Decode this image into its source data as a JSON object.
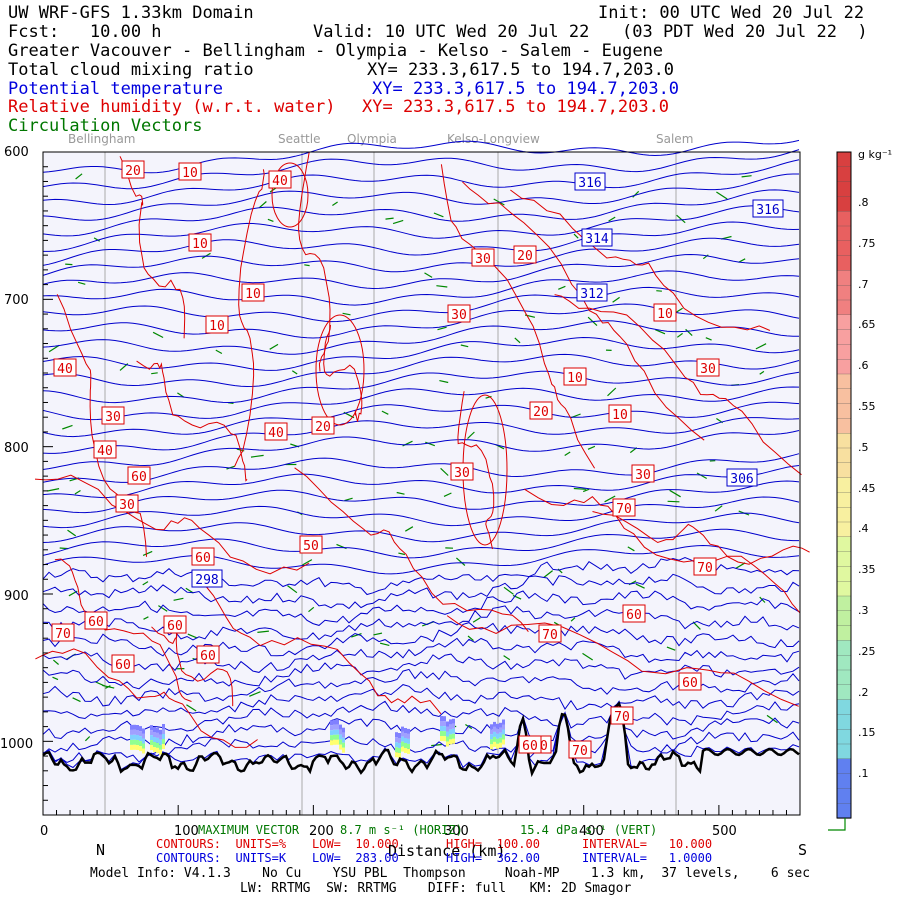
{
  "header": {
    "line1_left": "UW WRF-GFS 1.33km Domain",
    "line1_right": "Init: 00 UTC Wed 20 Jul 22",
    "line2_left": "Fcst:   10.00 h",
    "line2_mid": "Valid: 10 UTC Wed 20 Jul 22",
    "line2_right": "(03 PDT Wed 20 Jul 22  )",
    "line3": "Greater Vacouver - Bellingham - Olympia - Kelso - Salem - Eugene",
    "fields": [
      {
        "name": "Total cloud mixing ratio",
        "xy": "XY= 233.3,617.5 to 194.7,203.0",
        "color": "#000000"
      },
      {
        "name": "Potential temperature",
        "xy": "XY= 233.3,617.5 to 194.7,203.0",
        "color": "#0000dd"
      },
      {
        "name": "Relative humidity (w.r.t. water)",
        "xy": "XY= 233.3,617.5 to 194.7,203.0",
        "color": "#dd0000"
      },
      {
        "name": "Circulation Vectors",
        "xy": "",
        "color": "#007700"
      }
    ]
  },
  "cities": [
    "Bellingham",
    "Seattle",
    "Olympia",
    "Kelso-Longview",
    "Salem"
  ],
  "chart_data": {
    "type": "cross-section",
    "xlabel": "Distance (km)",
    "x_ticks": [
      0,
      100,
      200,
      300,
      400,
      500
    ],
    "xlim": [
      0,
      560
    ],
    "y_ticks": [
      600,
      700,
      800,
      900,
      1000
    ],
    "ylim": [
      1050,
      600
    ],
    "end_labels": {
      "left": "N",
      "right": "S"
    },
    "theta_labels": [
      316,
      316,
      314,
      312,
      306,
      298
    ],
    "rh_labels": [
      20,
      10,
      40,
      10,
      30,
      20,
      10,
      30,
      10,
      10,
      40,
      30,
      10,
      20,
      10,
      30,
      40,
      20,
      40,
      30,
      30,
      60,
      70,
      30,
      50,
      60,
      70,
      60,
      60,
      60,
      70,
      70,
      60,
      60,
      60,
      70,
      70,
      60,
      60
    ],
    "colorbar": {
      "unit": "g kg⁻¹",
      "ticks": [
        ".8",
        ".75",
        ".7",
        ".65",
        ".6",
        ".55",
        ".5",
        ".45",
        ".4",
        ".35",
        ".3",
        ".25",
        ".2",
        ".15",
        ".1"
      ]
    },
    "legend": {
      "vector_title": "MAXIMUM VECTOR",
      "horiz": "8.7 m s⁻¹ (HORIZ)",
      "vert": "15.4 dPa s⁻¹ (VERT)"
    }
  },
  "footer": {
    "rh_contours": "CONTOURS:  UNITS=%",
    "rh_low": "LOW=  10.000",
    "rh_high": "HIGH=  100.00",
    "rh_interval": "INTERVAL=   10.000",
    "th_contours": "CONTOURS:  UNITS=K",
    "th_low": "LOW=  283.00",
    "th_high": "HIGH=  362.00",
    "th_interval": "INTERVAL=   1.0000",
    "model_info": "Model Info: V4.1.3    No Cu    YSU PBL  Thompson     Noah-MP    1.3 km,  37 levels,    6 sec",
    "model_info2": "LW: RRTMG  SW: RRTMG    DIFF: full   KM: 2D Smagor"
  },
  "colors": {
    "rh": "#dd0000",
    "theta": "#0000cc",
    "vector": "#008800",
    "terrain": "#000000",
    "grid": "#aaaaaa",
    "bg": "#f4f4fc"
  }
}
